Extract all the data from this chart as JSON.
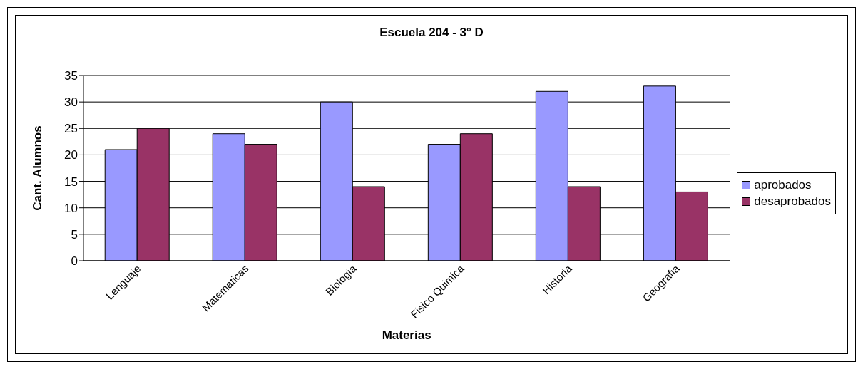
{
  "chart_data": {
    "type": "bar",
    "title": "Escuela 204 - 3° D",
    "xlabel": "Materias",
    "ylabel": "Cant. Alumnos",
    "categories": [
      "Lenguaje",
      "Matematicas",
      "Biologia",
      "Fisico Quimica",
      "Historia",
      "Geografia"
    ],
    "series": [
      {
        "name": "aprobados",
        "color": "#9999ff",
        "values": [
          21,
          24,
          30,
          22,
          32,
          33
        ]
      },
      {
        "name": "desaprobados",
        "color": "#993366",
        "values": [
          25,
          22,
          14,
          24,
          14,
          13
        ]
      }
    ],
    "ylim": [
      0,
      35
    ],
    "yticks": [
      0,
      5,
      10,
      15,
      20,
      25,
      30,
      35
    ],
    "grid": "y",
    "legend": "right"
  }
}
